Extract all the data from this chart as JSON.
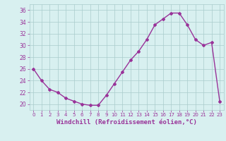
{
  "x": [
    0,
    1,
    2,
    3,
    4,
    5,
    6,
    7,
    8,
    9,
    10,
    11,
    12,
    13,
    14,
    15,
    16,
    17,
    18,
    19,
    20,
    21,
    22,
    23
  ],
  "y": [
    26,
    24,
    22.5,
    22,
    21,
    20.5,
    20,
    19.8,
    19.8,
    21.5,
    23.5,
    25.5,
    27.5,
    29,
    31,
    33.5,
    34.5,
    35.5,
    35.5,
    33.5,
    31,
    30,
    30.5,
    20.5
  ],
  "line_color": "#993399",
  "marker": "D",
  "marker_size": 2,
  "line_width": 1.0,
  "xlabel": "Windchill (Refroidissement éolien,°C)",
  "xlabel_fontsize": 6.5,
  "bg_color": "#d8f0f0",
  "grid_color": "#aacccc",
  "tick_color": "#993399",
  "label_color": "#993399",
  "ylim": [
    19,
    37
  ],
  "xlim": [
    -0.5,
    23.5
  ],
  "yticks": [
    20,
    22,
    24,
    26,
    28,
    30,
    32,
    34,
    36
  ],
  "xticks": [
    0,
    1,
    2,
    3,
    4,
    5,
    6,
    7,
    8,
    9,
    10,
    11,
    12,
    13,
    14,
    15,
    16,
    17,
    18,
    19,
    20,
    21,
    22,
    23
  ]
}
